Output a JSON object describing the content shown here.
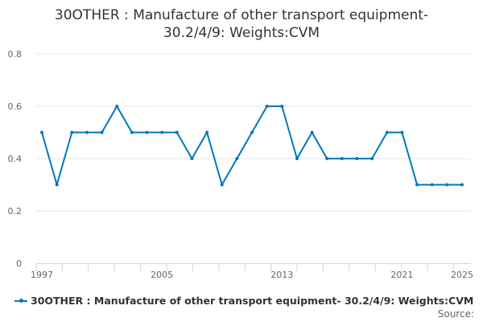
{
  "chart_data": {
    "type": "line",
    "title": "30OTHER : Manufacture of other transport equipment- 30.2/4/9: Weights:CVM",
    "title_lines": [
      "30OTHER : Manufacture of other transport equipment-",
      "30.2/4/9: Weights:CVM"
    ],
    "x": [
      1997,
      1998,
      1999,
      2000,
      2001,
      2002,
      2003,
      2004,
      2005,
      2006,
      2007,
      2008,
      2009,
      2010,
      2011,
      2012,
      2013,
      2014,
      2015,
      2016,
      2017,
      2018,
      2019,
      2020,
      2021,
      2022,
      2023,
      2024,
      2025
    ],
    "series": [
      {
        "name": "30OTHER : Manufacture of other transport equipment- 30.2/4/9: Weights:CVM",
        "color": "#0077bb",
        "values": [
          0.5,
          0.3,
          0.5,
          0.5,
          0.5,
          0.6,
          0.5,
          0.5,
          0.5,
          0.5,
          0.4,
          0.5,
          0.3,
          0.4,
          0.5,
          0.6,
          0.6,
          0.4,
          0.5,
          0.4,
          0.4,
          0.4,
          0.4,
          0.5,
          0.5,
          0.3,
          0.3,
          0.3,
          0.3
        ]
      }
    ],
    "x_tick_labels": [
      "1997",
      "2005",
      "2013",
      "2021",
      "2025"
    ],
    "y_tick_labels": [
      "0",
      "0.2",
      "0.4",
      "0.6",
      "0.8"
    ],
    "ylim": [
      0,
      0.8
    ],
    "grid": true,
    "legend": "bottom-left",
    "source_label": "Source:"
  }
}
